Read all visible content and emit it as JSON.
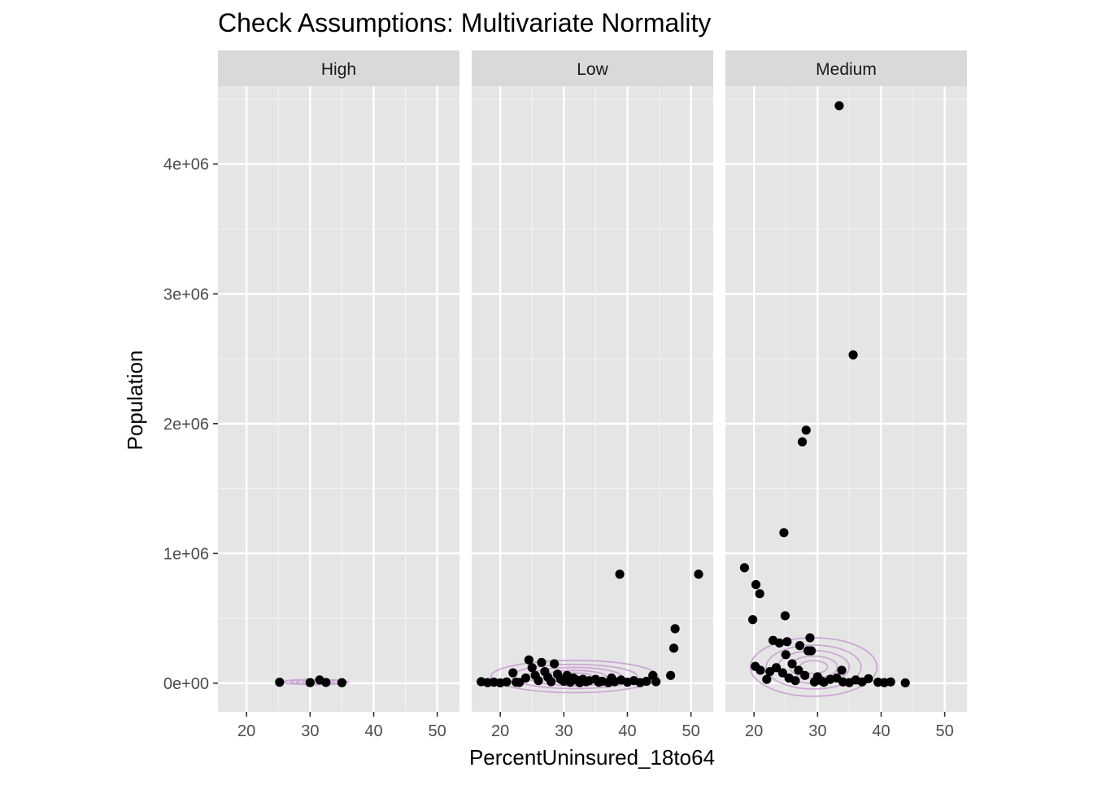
{
  "chart_data": {
    "type": "scatter",
    "title": "Check Assumptions: Multivariate Normality",
    "xlabel": "PercentUninsured_18to64",
    "ylabel": "Population",
    "facets": [
      "High",
      "Low",
      "Medium"
    ],
    "xlim": [
      15.5,
      53.5
    ],
    "ylim": [
      -220000,
      4600000
    ],
    "xticks": [
      20,
      30,
      40,
      50
    ],
    "xtick_labels": [
      "20",
      "30",
      "40",
      "50"
    ],
    "yticks": [
      0,
      1000000,
      2000000,
      3000000,
      4000000
    ],
    "ytick_labels": [
      "0e+00",
      "1e+06",
      "2e+06",
      "3e+06",
      "4e+06"
    ],
    "grid": true,
    "overlay": "2D density contours",
    "colors": {
      "points": "#000000",
      "density": "#cda8d4",
      "panel_bg": "#e5e5e5",
      "strip_bg": "#d9d9d9",
      "grid": "#ffffff"
    },
    "series": [
      {
        "facet": "High",
        "points": [
          [
            25.2,
            8000
          ],
          [
            30,
            5000
          ],
          [
            31.5,
            25000
          ],
          [
            32.5,
            6000
          ],
          [
            35,
            4000
          ]
        ]
      },
      {
        "facet": "Low",
        "points": [
          [
            17,
            12000
          ],
          [
            18,
            5000
          ],
          [
            19,
            8000
          ],
          [
            20,
            3000
          ],
          [
            21,
            10000
          ],
          [
            22,
            80000
          ],
          [
            22.5,
            8000
          ],
          [
            23,
            6000
          ],
          [
            24,
            40000
          ],
          [
            24.5,
            180000
          ],
          [
            25,
            120000
          ],
          [
            25.5,
            60000
          ],
          [
            26,
            20000
          ],
          [
            26.5,
            160000
          ],
          [
            27,
            90000
          ],
          [
            27.5,
            45000
          ],
          [
            28,
            12000
          ],
          [
            28.5,
            150000
          ],
          [
            29,
            70000
          ],
          [
            29.5,
            30000
          ],
          [
            30,
            15000
          ],
          [
            30.5,
            60000
          ],
          [
            31,
            8000
          ],
          [
            31.5,
            40000
          ],
          [
            32,
            25000
          ],
          [
            32.5,
            5000
          ],
          [
            33,
            30000
          ],
          [
            33.5,
            12000
          ],
          [
            34,
            20000
          ],
          [
            35,
            30000
          ],
          [
            35.5,
            8000
          ],
          [
            36,
            15000
          ],
          [
            37,
            5000
          ],
          [
            37.5,
            40000
          ],
          [
            38,
            12000
          ],
          [
            38.8,
            840000
          ],
          [
            39,
            25000
          ],
          [
            40,
            8000
          ],
          [
            41,
            20000
          ],
          [
            42,
            5000
          ],
          [
            43,
            15000
          ],
          [
            44,
            60000
          ],
          [
            44.5,
            12000
          ],
          [
            46.8,
            60000
          ],
          [
            47.3,
            270000
          ],
          [
            47.5,
            420000
          ],
          [
            51.2,
            840000
          ]
        ]
      },
      {
        "facet": "Medium",
        "points": [
          [
            18.5,
            890000
          ],
          [
            19.8,
            490000
          ],
          [
            20.3,
            760000
          ],
          [
            20.2,
            130000
          ],
          [
            20.9,
            690000
          ],
          [
            21,
            100000
          ],
          [
            22,
            30000
          ],
          [
            22.5,
            90000
          ],
          [
            23,
            330000
          ],
          [
            23.5,
            120000
          ],
          [
            24,
            310000
          ],
          [
            24.5,
            80000
          ],
          [
            24.7,
            1160000
          ],
          [
            24.9,
            520000
          ],
          [
            25,
            220000
          ],
          [
            25.2,
            320000
          ],
          [
            25.5,
            40000
          ],
          [
            26,
            150000
          ],
          [
            26.5,
            20000
          ],
          [
            27,
            100000
          ],
          [
            27.2,
            290000
          ],
          [
            27.6,
            1860000
          ],
          [
            28,
            60000
          ],
          [
            28.2,
            1950000
          ],
          [
            28.5,
            250000
          ],
          [
            28.8,
            350000
          ],
          [
            29,
            250000
          ],
          [
            29.5,
            10000
          ],
          [
            30,
            50000
          ],
          [
            30.5,
            20000
          ],
          [
            31,
            8000
          ],
          [
            32,
            30000
          ],
          [
            33,
            40000
          ],
          [
            33.4,
            4450000
          ],
          [
            33.8,
            100000
          ],
          [
            34,
            10000
          ],
          [
            35,
            5000
          ],
          [
            35.6,
            2530000
          ],
          [
            36,
            25000
          ],
          [
            37,
            10000
          ],
          [
            38,
            35000
          ],
          [
            39.5,
            8000
          ],
          [
            40.5,
            5000
          ],
          [
            41.5,
            10000
          ],
          [
            43.8,
            3000
          ]
        ]
      }
    ]
  }
}
